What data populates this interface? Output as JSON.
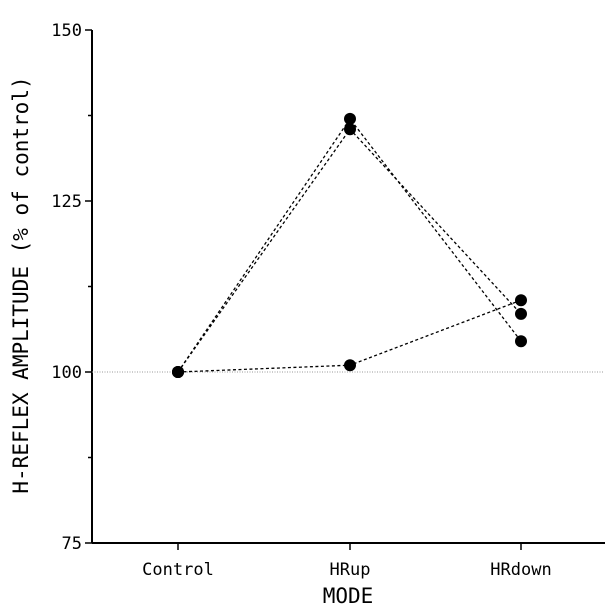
{
  "chart_data": {
    "type": "line",
    "title": "",
    "xlabel": "MODE",
    "ylabel": "H-REFLEX AMPLITUDE (% of control)",
    "categories": [
      "Control",
      "HRup",
      "HRdown"
    ],
    "ylim": [
      75,
      150
    ],
    "yticks": [
      75,
      100,
      125,
      150
    ],
    "yticks_minor": [
      87.5,
      112.5,
      137.5
    ],
    "reference_line": 100,
    "grid": false,
    "series": [
      {
        "values": [
          100,
          137,
          104.5
        ]
      },
      {
        "values": [
          100,
          135.5,
          108.5
        ]
      },
      {
        "values": [
          100,
          101,
          110.5
        ]
      }
    ],
    "marker_color": "#000000",
    "line_style": "dotted"
  }
}
